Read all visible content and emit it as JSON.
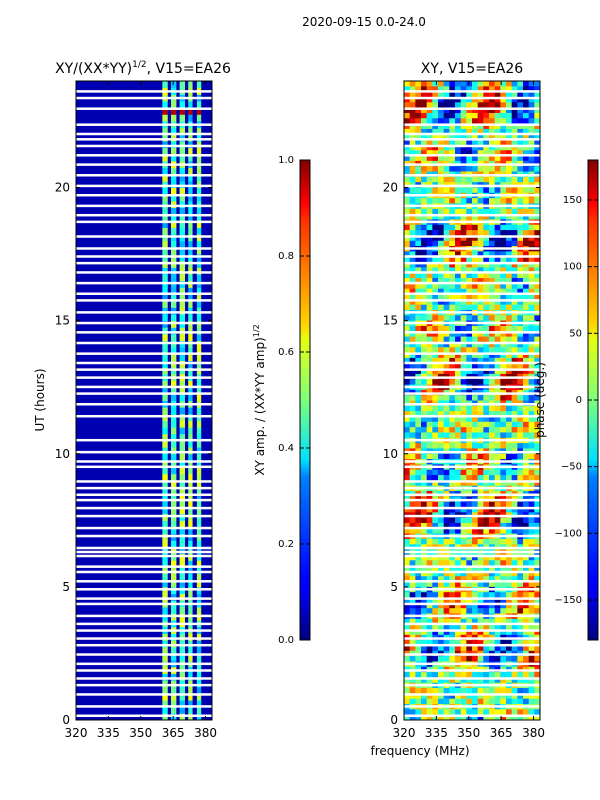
{
  "chart_data": [
    {
      "type": "heatmap",
      "title_prefix": "XY/(XX*YY)",
      "title_exponent": "1/2",
      "title_suffix": ", V15=EA26",
      "xlabel": "",
      "ylabel": "UT (hours)",
      "xlim": [
        320,
        383
      ],
      "ylim": [
        0,
        24
      ],
      "xticks": [
        320,
        335,
        350,
        365,
        380
      ],
      "yticks": [
        0,
        5,
        10,
        15,
        20
      ],
      "colorbar": {
        "label_prefix": "XY amp. / (XX*YY amp)",
        "label_exponent": "1/2",
        "range": [
          0.0,
          1.0
        ],
        "ticks": [
          "0.0",
          "0.2",
          "0.4",
          "0.6",
          "0.8",
          "1.0"
        ]
      },
      "active_bands_mhz": [
        [
          360,
          362.5
        ],
        [
          364,
          366.5
        ],
        [
          368,
          370.5
        ],
        [
          372,
          374
        ],
        [
          376,
          378
        ]
      ],
      "background_value": 0.05,
      "band_value": 0.45
    },
    {
      "type": "heatmap",
      "title": "XY, V15=EA26",
      "xlabel": "frequency (MHz)",
      "ylabel": "",
      "xlim": [
        320,
        383
      ],
      "ylim": [
        0,
        24
      ],
      "xticks": [
        320,
        335,
        350,
        365,
        380
      ],
      "yticks": [
        0,
        5,
        10,
        15,
        20
      ],
      "colorbar": {
        "label": "phase (deg.)",
        "range": [
          -180,
          180
        ],
        "ticks": [
          "−150",
          "−100",
          "−50",
          "0",
          "50",
          "100",
          "150"
        ]
      }
    }
  ],
  "figure": {
    "suptitle": "2020-09-15 0.0-24.0"
  },
  "flagged_rows_hours": [
    0.15,
    0.5,
    0.95,
    1.3,
    1.55,
    1.85,
    2.1,
    2.45,
    2.8,
    3.05,
    3.35,
    3.6,
    3.9,
    4.35,
    4.55,
    4.9,
    5.2,
    5.55,
    5.75,
    6.15,
    6.3,
    6.45,
    6.9,
    7.2,
    7.65,
    7.95,
    8.25,
    8.45,
    8.7,
    8.95,
    9.5,
    9.7,
    10.05,
    10.5,
    11.4,
    11.85,
    12.25,
    12.5,
    12.85,
    13.15,
    13.4,
    13.75,
    14.15,
    14.55,
    14.9,
    15.3,
    15.75,
    16.0,
    16.4,
    16.8,
    17.15,
    17.4,
    17.7,
    18.15,
    18.7,
    18.95,
    19.3,
    19.7,
    20.05,
    20.45,
    20.85,
    21.2,
    21.55,
    21.8,
    22.0,
    22.35,
    22.95,
    23.35,
    23.6
  ]
}
